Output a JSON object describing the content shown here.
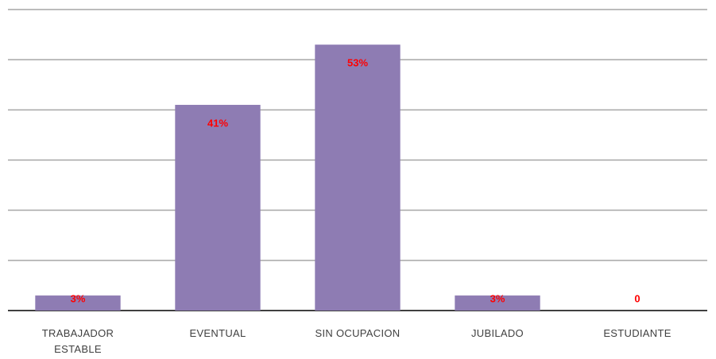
{
  "chart_data": {
    "type": "bar",
    "categories": [
      "TRABAJADOR ESTABLE",
      "EVENTUAL",
      "SIN OCUPACION",
      "JUBILADO",
      "ESTUDIANTE"
    ],
    "values": [
      3,
      41,
      53,
      3,
      0
    ],
    "value_labels": [
      "3%",
      "41%",
      "53%",
      "3%",
      "0"
    ],
    "color": "#8e7cb3",
    "label_color": "#ff0000",
    "ylim": [
      0,
      60
    ],
    "yticks": [
      0,
      10,
      20,
      30,
      40,
      50,
      60
    ],
    "grid": true
  }
}
